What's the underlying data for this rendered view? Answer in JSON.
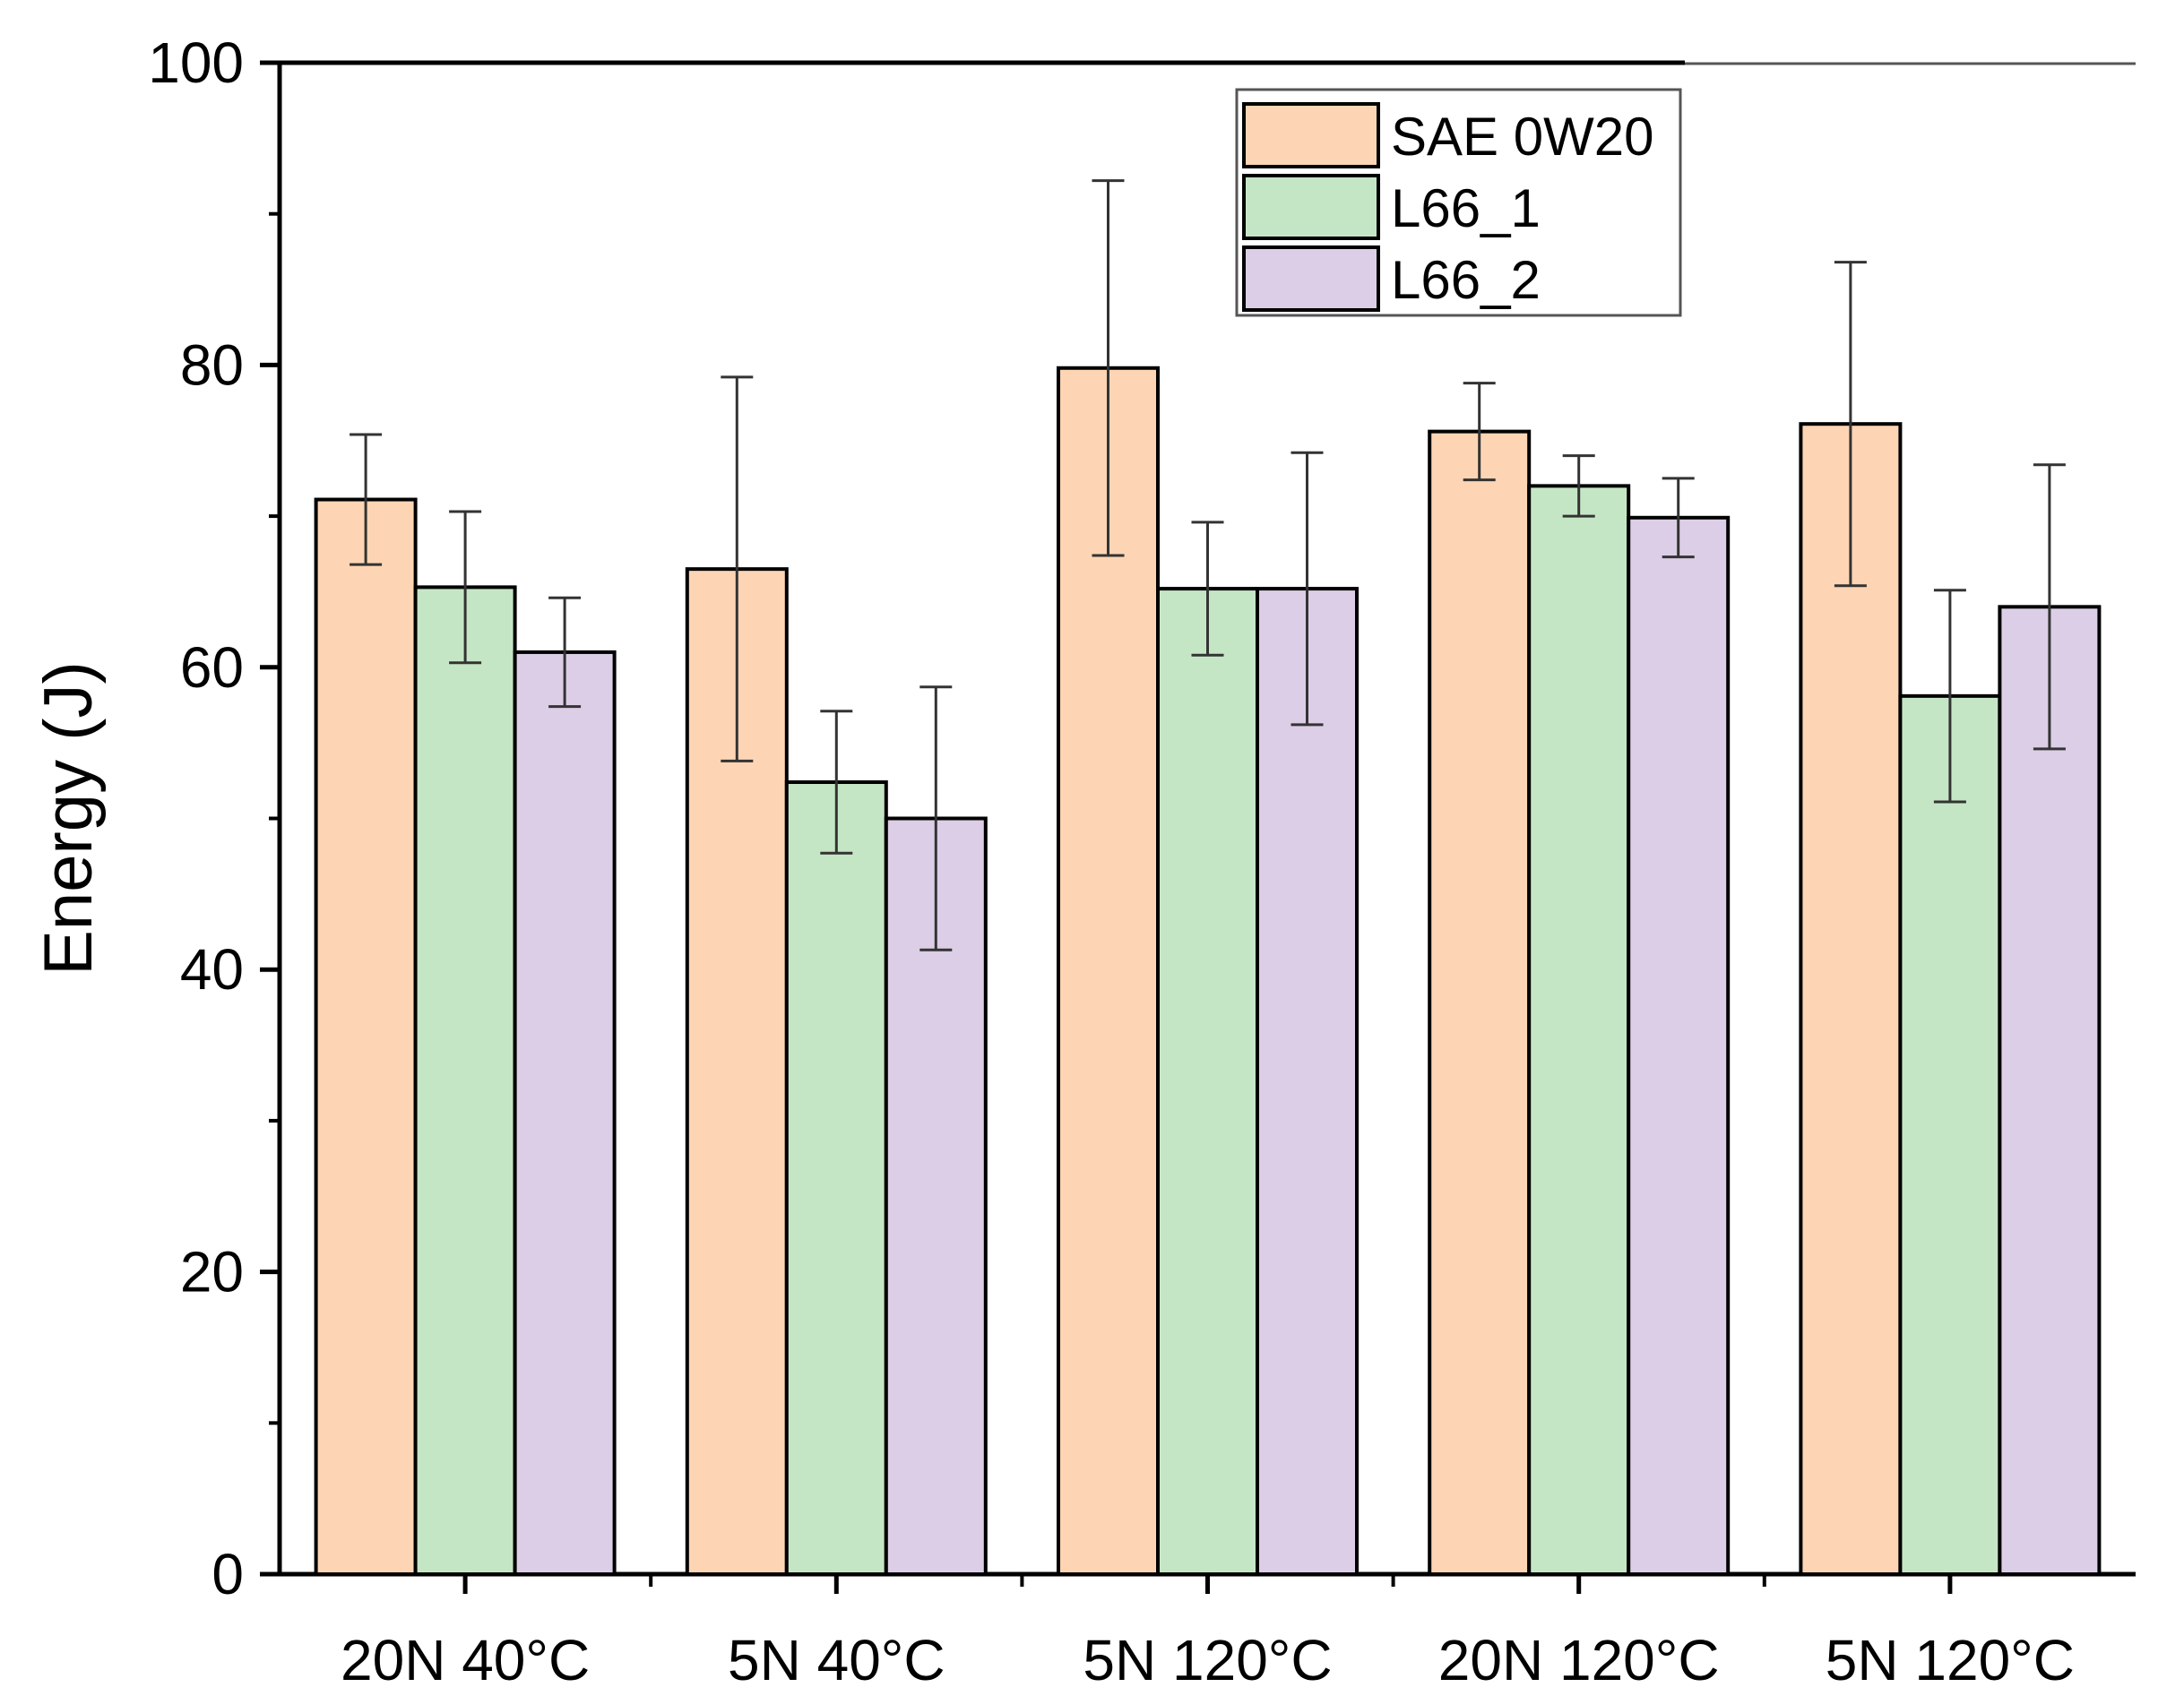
{
  "chart_data": {
    "type": "bar",
    "title": "",
    "xlabel": "",
    "ylabel": "Energy (J)",
    "ylim": [
      0,
      100
    ],
    "yticks": [
      "0",
      "20",
      "40",
      "60",
      "80",
      "100"
    ],
    "categories": [
      "20N 40°C",
      "5N 40°C",
      "5N 120°C",
      "20N 120°C",
      "5N 120°C"
    ],
    "legend_position": "top-right",
    "series": [
      {
        "name": "SAE 0W20",
        "color": "#fdd5b4",
        "values": [
          71.1,
          66.5,
          79.8,
          75.6,
          76.1
        ],
        "error": [
          4.3,
          12.7,
          12.4,
          3.2,
          10.7
        ]
      },
      {
        "name": "L66_1",
        "color": "#c5e6c5",
        "values": [
          65.3,
          52.4,
          65.2,
          72.0,
          58.1
        ],
        "error": [
          5.0,
          4.7,
          4.4,
          2.0,
          7.0
        ]
      },
      {
        "name": "L66_2",
        "color": "#dccee6",
        "values": [
          61.0,
          50.0,
          65.2,
          69.9,
          64.0
        ],
        "error": [
          3.6,
          8.7,
          9.0,
          2.6,
          9.4
        ]
      }
    ]
  }
}
